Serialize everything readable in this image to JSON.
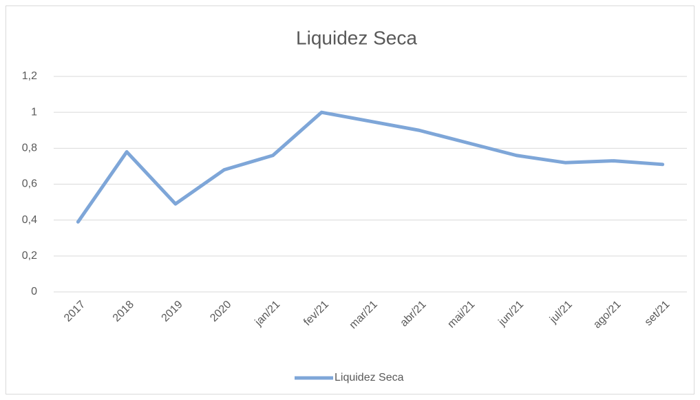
{
  "chart_data": {
    "type": "line",
    "title": "Liquidez Seca",
    "categories": [
      "2017",
      "2018",
      "2019",
      "2020",
      "jan/21",
      "fev/21",
      "mar/21",
      "abr/21",
      "mai/21",
      "jun/21",
      "jul/21",
      "ago/21",
      "set/21"
    ],
    "series": [
      {
        "name": "Liquidez Seca",
        "color": "#7ea6d8",
        "values": [
          0.39,
          0.78,
          0.49,
          0.68,
          0.76,
          1.0,
          0.95,
          0.9,
          0.83,
          0.76,
          0.72,
          0.73,
          0.71
        ]
      }
    ],
    "ylim": [
      0,
      1.2
    ],
    "yticks": [
      0,
      {
        "value": 0.2,
        "label": "0,2"
      },
      {
        "value": 0.4,
        "label": "0,4"
      },
      {
        "value": 0.6,
        "label": "0,6"
      },
      {
        "value": 0.8,
        "label": "0,8"
      },
      1,
      {
        "value": 1.2,
        "label": "1,2"
      }
    ],
    "grid": true,
    "legend": "bottom"
  }
}
